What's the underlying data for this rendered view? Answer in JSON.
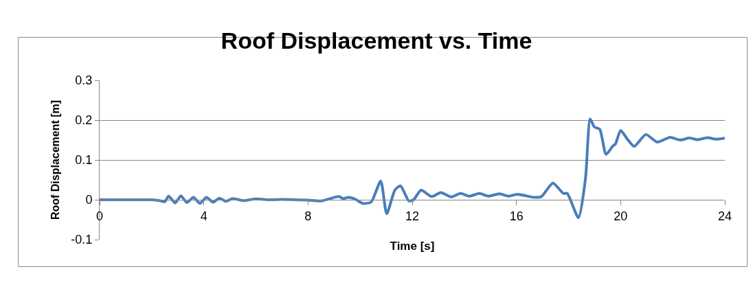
{
  "chart_data": {
    "type": "line",
    "title": "Roof Displacement vs. Time",
    "xlabel": "Time [s]",
    "ylabel": "Roof Displacement [m]",
    "x": [
      0,
      1,
      2,
      2.3,
      2.5,
      2.65,
      2.9,
      3.12,
      3.35,
      3.6,
      3.85,
      4.1,
      4.35,
      4.6,
      4.85,
      5.1,
      5.5,
      6,
      6.5,
      7,
      7.5,
      8,
      8.5,
      9.18,
      9.35,
      9.55,
      9.8,
      10.1,
      10.42,
      10.79,
      11.02,
      11.34,
      11.55,
      11.87,
      12.05,
      12.34,
      12.74,
      13.1,
      13.5,
      13.85,
      14.2,
      14.58,
      14.93,
      15.35,
      15.7,
      16.04,
      16.67,
      16.96,
      17.4,
      17.8,
      17.95,
      18.38,
      18.65,
      18.83,
      18.99,
      19.2,
      19.44,
      19.7,
      19.8,
      20.0,
      20.26,
      20.52,
      20.97,
      21.4,
      21.9,
      22.28,
      22.64,
      22.95,
      23.35,
      23.65,
      24
    ],
    "series": [
      {
        "color": "#4a7ebb",
        "values": [
          0,
          0,
          0,
          -0.002,
          -0.005,
          0.009,
          -0.008,
          0.01,
          -0.007,
          0.006,
          -0.009,
          0.006,
          -0.006,
          0.004,
          -0.004,
          0.003,
          -0.002,
          0.002,
          0,
          0.001,
          0,
          -0.001,
          -0.003,
          0.008,
          0.003,
          0.006,
          0.002,
          -0.009,
          -0.006,
          0.047,
          -0.035,
          0.025,
          0.035,
          -0.003,
          0,
          0.024,
          0.008,
          0.018,
          0.007,
          0.016,
          0.009,
          0.016,
          0.009,
          0.015,
          0.009,
          0.014,
          0.006,
          0.008,
          0.042,
          0.016,
          0.016,
          -0.045,
          0.053,
          0.203,
          0.183,
          0.177,
          0.114,
          0.135,
          0.14,
          0.174,
          0.152,
          0.134,
          0.164,
          0.145,
          0.157,
          0.15,
          0.155,
          0.151,
          0.156,
          0.152,
          0.155
        ]
      }
    ],
    "xlim": [
      0,
      24
    ],
    "xticks": [
      0,
      4,
      8,
      12,
      16,
      20,
      24
    ],
    "ylim": [
      -0.1,
      0.3
    ],
    "yticks": [
      {
        "value": -0.1,
        "label": "-0.1"
      },
      0,
      {
        "value": 0.1,
        "label": "0.1"
      },
      {
        "value": 0.2,
        "label": "0.2"
      },
      {
        "value": 0.3,
        "label": "0.3"
      }
    ],
    "grid": "y",
    "marker": "none",
    "line_style": "solid"
  }
}
